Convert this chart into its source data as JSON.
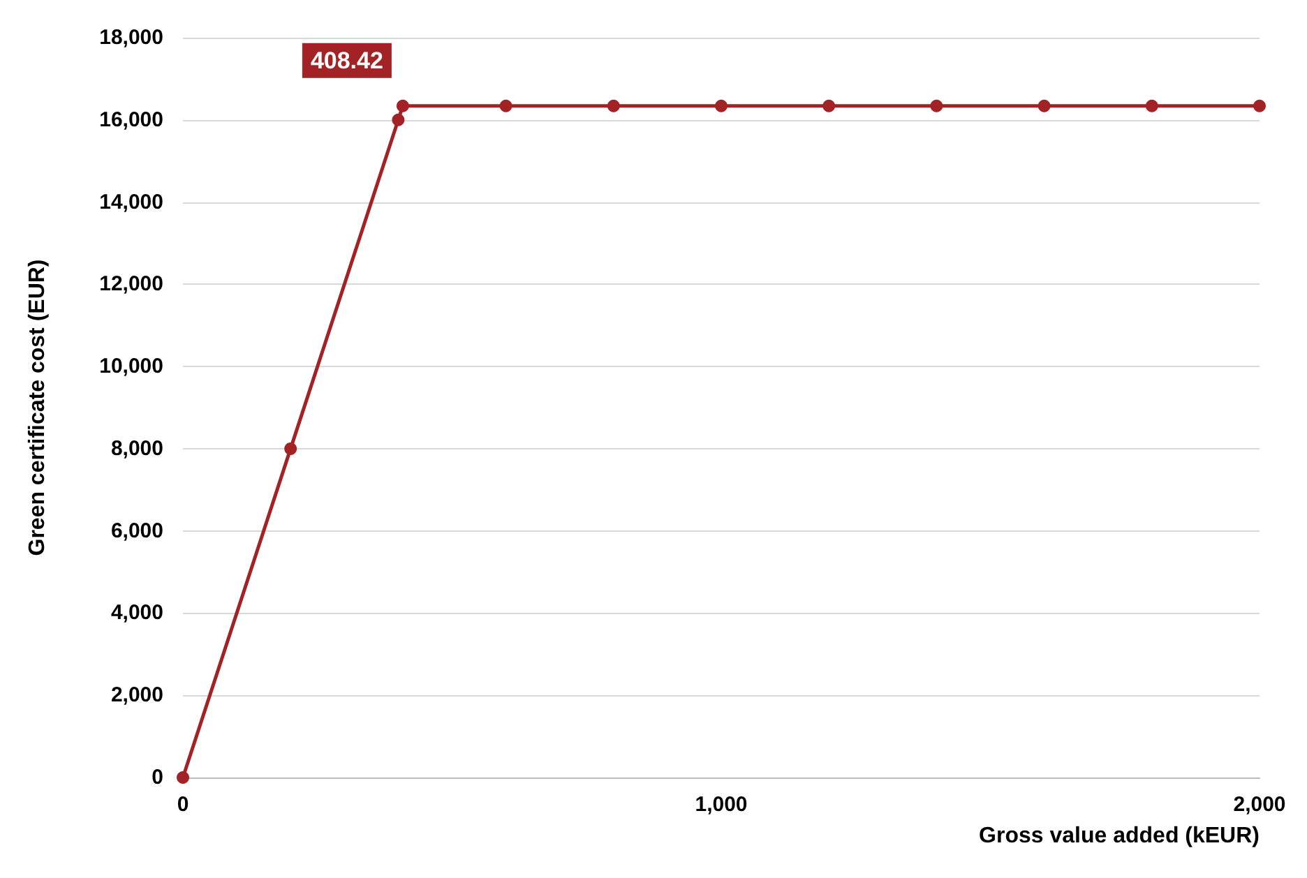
{
  "chart_data": {
    "type": "line",
    "xlabel": "Gross value added (kEUR)",
    "ylabel": "Green certificate cost (EUR)",
    "x": [
      0,
      200,
      400,
      408.42,
      600,
      800,
      1000,
      1200,
      1400,
      1600,
      1800,
      2000
    ],
    "series": [
      {
        "color": "#a32226",
        "values": [
          0,
          8000,
          16000,
          16340,
          16340,
          16340,
          16340,
          16340,
          16340,
          16340,
          16340,
          16340
        ]
      }
    ],
    "xlim": [
      0,
      2000
    ],
    "xticks": [
      0,
      {
        "value": 1000,
        "label": "1,000"
      },
      {
        "value": 2000,
        "label": "2,000"
      }
    ],
    "ylim": [
      0,
      18000
    ],
    "yticks": [
      0,
      {
        "value": 2000,
        "label": "2,000"
      },
      {
        "value": 4000,
        "label": "4,000"
      },
      {
        "value": 6000,
        "label": "6,000"
      },
      {
        "value": 8000,
        "label": "8,000"
      },
      {
        "value": 10000,
        "label": "10,000"
      },
      {
        "value": 12000,
        "label": "12,000"
      },
      {
        "value": 14000,
        "label": "14,000"
      },
      {
        "value": 16000,
        "label": "16,000"
      },
      {
        "value": 18000,
        "label": "18,000"
      }
    ],
    "annotations": [
      {
        "text": "408.42",
        "x": 408.42,
        "y": 16340
      }
    ],
    "grid": "y",
    "marker": "circle",
    "line_style": "solid"
  }
}
